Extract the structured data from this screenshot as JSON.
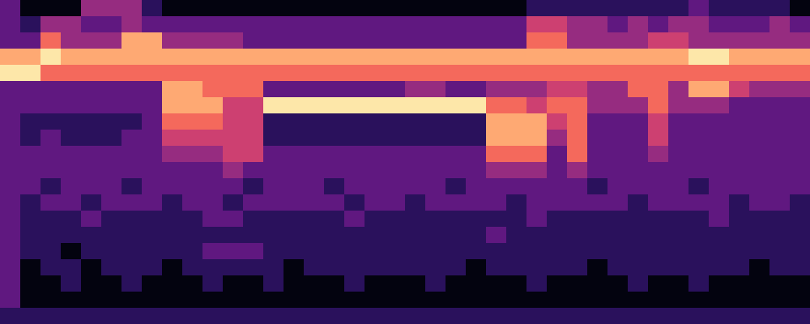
{
  "chart_data": {
    "type": "heatmap",
    "tick_labels": false,
    "values": [
      [
        3,
        1,
        1,
        1,
        4,
        4,
        4,
        2,
        1,
        1,
        1,
        1,
        1,
        1,
        1,
        1,
        1,
        1,
        1,
        1,
        1,
        1,
        1,
        1,
        1,
        1,
        2,
        2,
        2,
        2,
        2,
        2,
        2,
        2,
        3,
        2,
        2,
        2,
        2,
        1
      ],
      [
        3,
        2,
        4,
        4,
        3,
        3,
        4,
        3,
        3,
        3,
        3,
        3,
        3,
        3,
        3,
        3,
        3,
        3,
        3,
        3,
        3,
        3,
        3,
        3,
        3,
        3,
        5,
        5,
        4,
        4,
        3,
        4,
        3,
        4,
        4,
        3,
        3,
        3,
        4,
        3
      ],
      [
        3,
        3,
        6,
        4,
        4,
        4,
        7,
        7,
        4,
        4,
        4,
        4,
        3,
        3,
        3,
        3,
        3,
        3,
        3,
        3,
        3,
        3,
        3,
        3,
        3,
        3,
        6,
        6,
        4,
        4,
        4,
        4,
        5,
        5,
        4,
        4,
        4,
        4,
        4,
        4
      ],
      [
        7,
        7,
        8,
        7,
        7,
        7,
        7,
        7,
        7,
        7,
        7,
        7,
        7,
        7,
        7,
        7,
        7,
        7,
        7,
        7,
        7,
        7,
        7,
        7,
        7,
        7,
        7,
        7,
        7,
        7,
        7,
        7,
        7,
        7,
        8,
        8,
        7,
        7,
        7,
        7
      ],
      [
        8,
        8,
        6,
        6,
        6,
        6,
        6,
        6,
        6,
        6,
        6,
        6,
        6,
        6,
        6,
        6,
        6,
        6,
        6,
        6,
        6,
        6,
        6,
        6,
        6,
        6,
        6,
        6,
        6,
        6,
        6,
        6,
        6,
        6,
        6,
        6,
        6,
        6,
        6,
        6
      ],
      [
        3,
        3,
        3,
        3,
        3,
        3,
        3,
        3,
        7,
        7,
        6,
        6,
        6,
        3,
        3,
        3,
        3,
        3,
        3,
        3,
        4,
        4,
        3,
        3,
        4,
        4,
        4,
        5,
        5,
        4,
        4,
        6,
        6,
        4,
        7,
        7,
        5,
        4,
        4,
        4
      ],
      [
        3,
        3,
        3,
        3,
        3,
        3,
        3,
        3,
        7,
        7,
        7,
        5,
        5,
        8,
        8,
        8,
        8,
        8,
        8,
        8,
        8,
        8,
        8,
        8,
        6,
        6,
        5,
        6,
        6,
        4,
        4,
        4,
        6,
        4,
        4,
        4,
        3,
        3,
        3,
        3
      ],
      [
        3,
        2,
        2,
        2,
        2,
        2,
        2,
        3,
        6,
        6,
        6,
        5,
        5,
        2,
        2,
        2,
        2,
        2,
        2,
        2,
        2,
        2,
        2,
        2,
        7,
        7,
        7,
        5,
        6,
        3,
        3,
        3,
        5,
        3,
        3,
        3,
        3,
        3,
        3,
        3
      ],
      [
        3,
        2,
        3,
        2,
        2,
        2,
        3,
        3,
        5,
        5,
        5,
        5,
        5,
        2,
        2,
        2,
        2,
        2,
        2,
        2,
        2,
        2,
        2,
        2,
        7,
        7,
        7,
        4,
        6,
        3,
        3,
        3,
        5,
        3,
        3,
        3,
        3,
        3,
        3,
        3
      ],
      [
        3,
        3,
        3,
        3,
        3,
        3,
        3,
        3,
        4,
        4,
        4,
        5,
        5,
        3,
        3,
        3,
        3,
        3,
        3,
        3,
        3,
        3,
        3,
        3,
        6,
        6,
        6,
        3,
        6,
        3,
        3,
        3,
        4,
        3,
        3,
        3,
        3,
        3,
        3,
        3
      ],
      [
        3,
        3,
        3,
        3,
        3,
        3,
        3,
        3,
        3,
        3,
        3,
        4,
        3,
        3,
        3,
        3,
        3,
        3,
        3,
        3,
        3,
        3,
        3,
        3,
        4,
        4,
        4,
        3,
        4,
        3,
        3,
        3,
        3,
        3,
        3,
        3,
        3,
        3,
        3,
        3
      ],
      [
        3,
        3,
        2,
        3,
        3,
        3,
        2,
        3,
        3,
        3,
        3,
        3,
        2,
        3,
        3,
        3,
        2,
        3,
        3,
        3,
        3,
        3,
        2,
        3,
        3,
        3,
        3,
        3,
        3,
        2,
        3,
        3,
        3,
        3,
        2,
        3,
        3,
        3,
        3,
        3
      ],
      [
        3,
        2,
        3,
        3,
        2,
        3,
        3,
        3,
        2,
        3,
        3,
        2,
        3,
        3,
        3,
        3,
        3,
        2,
        3,
        3,
        2,
        3,
        3,
        3,
        3,
        2,
        3,
        3,
        3,
        3,
        3,
        2,
        3,
        3,
        3,
        3,
        2,
        3,
        3,
        2
      ],
      [
        3,
        2,
        2,
        2,
        3,
        2,
        2,
        2,
        2,
        2,
        3,
        3,
        2,
        2,
        2,
        2,
        2,
        3,
        2,
        2,
        2,
        2,
        2,
        2,
        2,
        2,
        3,
        2,
        2,
        2,
        2,
        2,
        2,
        2,
        2,
        3,
        2,
        2,
        2,
        2
      ],
      [
        3,
        2,
        2,
        2,
        2,
        2,
        2,
        2,
        2,
        2,
        2,
        2,
        2,
        2,
        2,
        2,
        2,
        2,
        2,
        2,
        2,
        2,
        2,
        2,
        3,
        2,
        2,
        2,
        2,
        2,
        2,
        2,
        2,
        2,
        2,
        2,
        2,
        2,
        2,
        2
      ],
      [
        3,
        2,
        2,
        1,
        2,
        2,
        2,
        2,
        2,
        2,
        3,
        3,
        3,
        2,
        2,
        2,
        2,
        2,
        2,
        2,
        2,
        2,
        2,
        2,
        2,
        2,
        2,
        2,
        2,
        2,
        2,
        2,
        2,
        2,
        2,
        2,
        2,
        2,
        2,
        2
      ],
      [
        3,
        1,
        2,
        2,
        1,
        2,
        2,
        2,
        1,
        2,
        2,
        2,
        2,
        2,
        1,
        2,
        2,
        2,
        2,
        2,
        2,
        2,
        2,
        1,
        2,
        2,
        2,
        2,
        2,
        1,
        2,
        2,
        2,
        2,
        2,
        2,
        2,
        1,
        2,
        2
      ],
      [
        3,
        1,
        1,
        2,
        1,
        1,
        2,
        1,
        1,
        1,
        2,
        1,
        1,
        2,
        1,
        1,
        1,
        2,
        1,
        1,
        1,
        2,
        1,
        1,
        1,
        1,
        2,
        1,
        1,
        1,
        1,
        2,
        1,
        1,
        2,
        1,
        1,
        1,
        1,
        1
      ],
      [
        3,
        1,
        1,
        1,
        1,
        1,
        1,
        1,
        1,
        1,
        1,
        1,
        1,
        1,
        1,
        1,
        1,
        1,
        1,
        1,
        1,
        1,
        1,
        1,
        1,
        1,
        1,
        1,
        1,
        1,
        1,
        1,
        1,
        1,
        1,
        1,
        1,
        1,
        1,
        1
      ],
      [
        2,
        2,
        2,
        2,
        2,
        2,
        2,
        2,
        2,
        2,
        2,
        2,
        2,
        2,
        2,
        2,
        2,
        2,
        2,
        2,
        2,
        2,
        2,
        2,
        2,
        2,
        2,
        2,
        2,
        2,
        2,
        2,
        2,
        2,
        2,
        2,
        2,
        2,
        2,
        2
      ]
    ]
  }
}
